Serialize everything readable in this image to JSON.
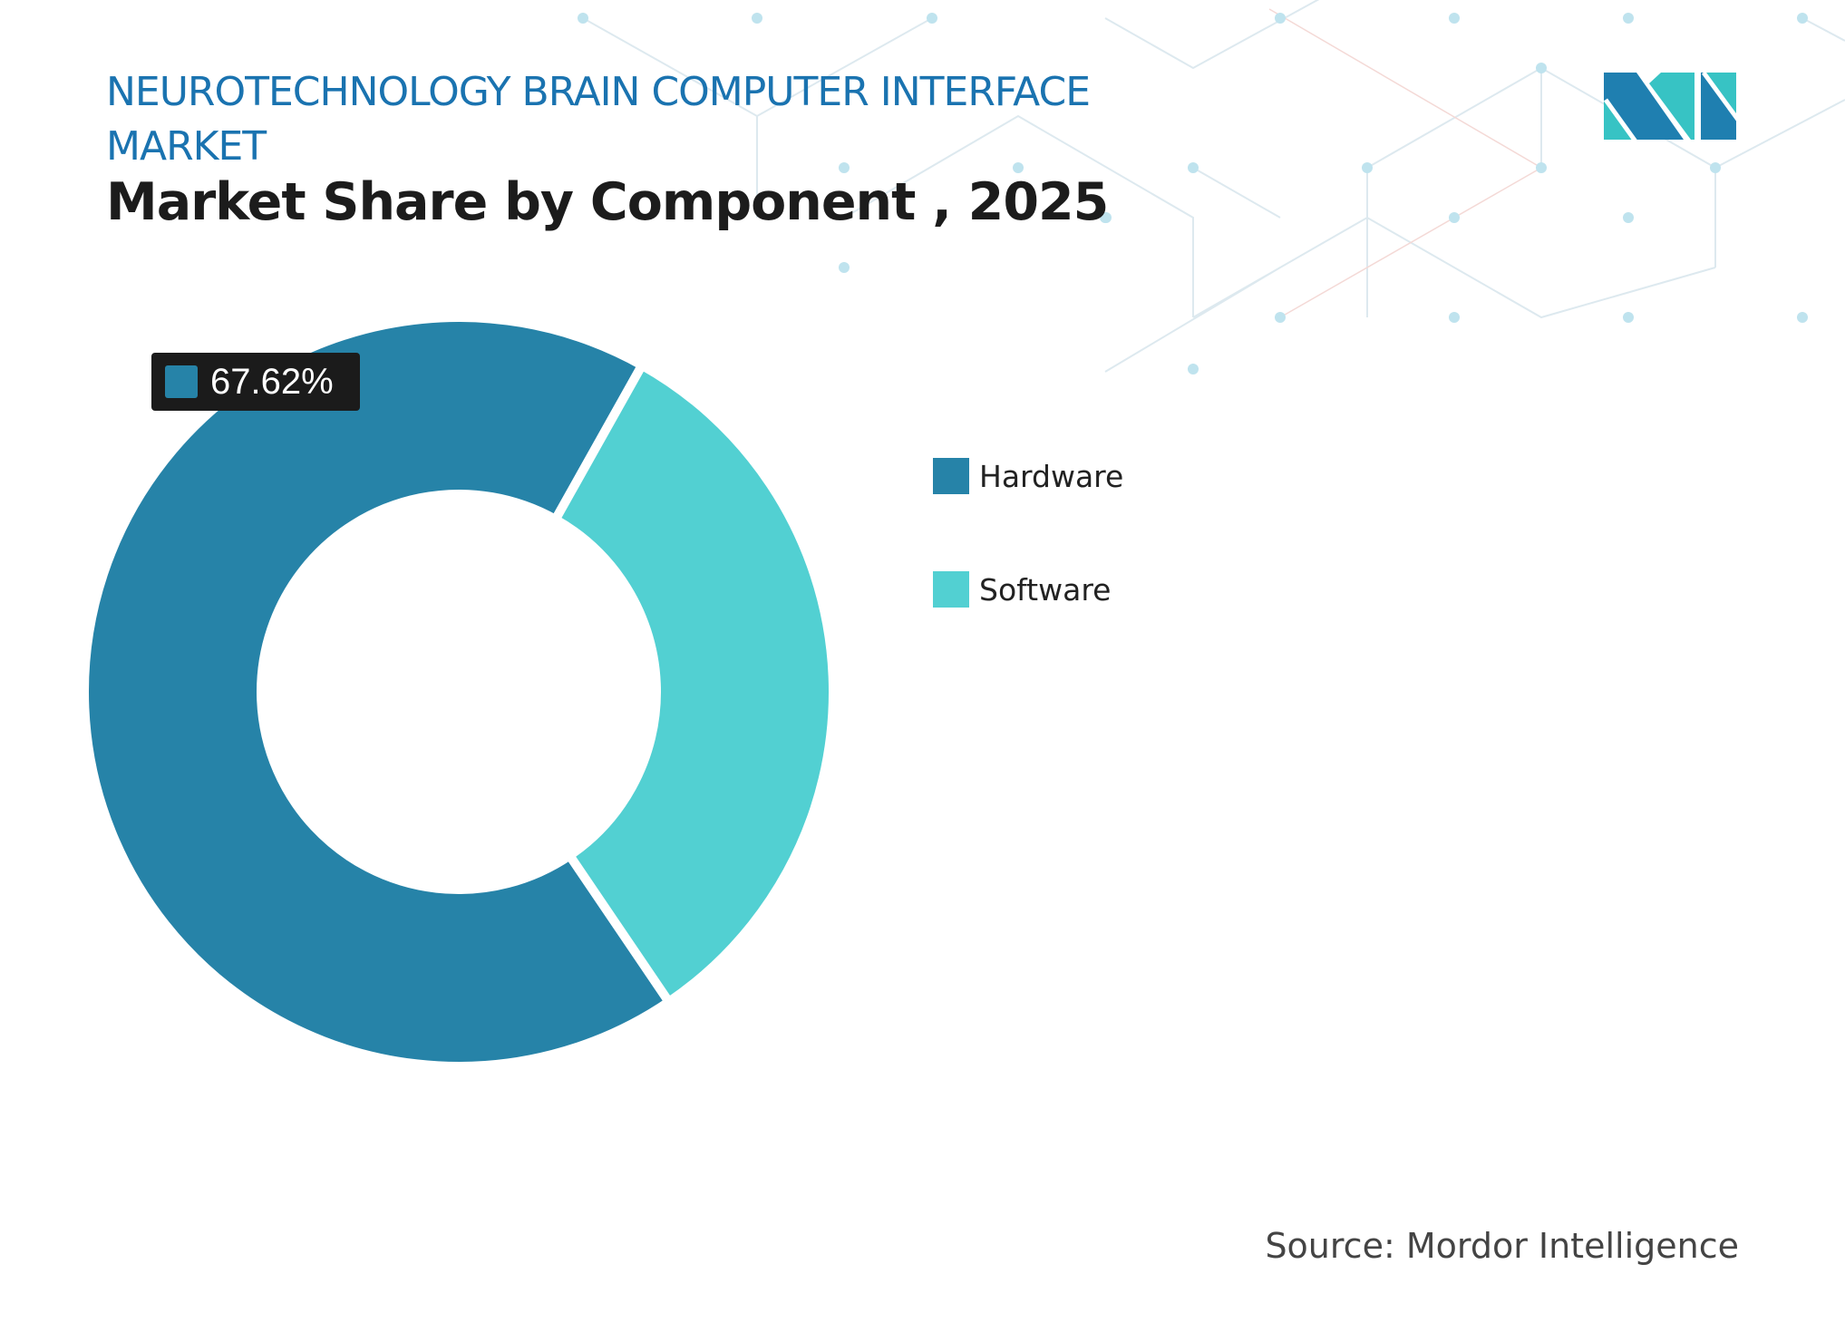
{
  "header": {
    "title": "NEUROTECHNOLOGY BRAIN COMPUTER INTERFACE MARKET",
    "subtitle": "Market Share by Component , 2025"
  },
  "chart_data": {
    "type": "pie",
    "variant": "donut",
    "categories": [
      "Hardware",
      "Software"
    ],
    "values": [
      67.62,
      32.38
    ],
    "colors": [
      "#2683a8",
      "#52d0d2"
    ],
    "data_labels": [
      {
        "category": "Hardware",
        "text": "67.62%"
      }
    ],
    "legend_position": "right"
  },
  "legend": {
    "items": [
      {
        "label": "Hardware",
        "color": "#2683a8"
      },
      {
        "label": "Software",
        "color": "#52d0d2"
      }
    ]
  },
  "source": "Source: Mordor Intelligence",
  "logo": {
    "icon": "mordor-intelligence-logo",
    "colors": [
      "#1f7fb0",
      "#37c3c4"
    ]
  }
}
